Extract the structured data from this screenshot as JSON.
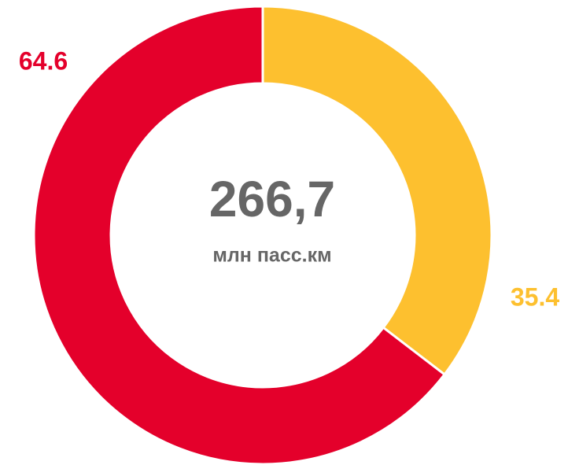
{
  "chart_data": {
    "type": "donut",
    "values": [
      35.4,
      64.6
    ],
    "colors": [
      "#fdc02f",
      "#e4002b"
    ],
    "center_value": "266,7",
    "center_label": "млн пасс.км"
  }
}
